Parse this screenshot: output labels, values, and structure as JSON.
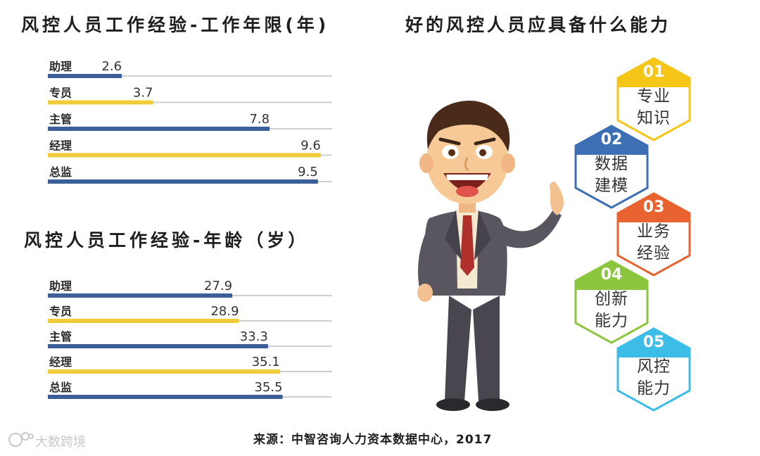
{
  "right_title": "好的风控人员应具备什么能力",
  "abilities": [
    {
      "num": "01",
      "line1": "专业",
      "line2": "知识",
      "color": "#f5c518"
    },
    {
      "num": "02",
      "line1": "数据",
      "line2": "建模",
      "color": "#3d6fb5"
    },
    {
      "num": "03",
      "line1": "业务",
      "line2": "经验",
      "color": "#e8632f"
    },
    {
      "num": "04",
      "line1": "创新",
      "line2": "能力",
      "color": "#8cc63e"
    },
    {
      "num": "05",
      "line1": "风控",
      "line2": "能力",
      "color": "#3bbde8"
    }
  ],
  "source": "来源：中智咨询人力资本数据中心，2017",
  "watermark": "大数跨境",
  "chart_data": [
    {
      "type": "bar",
      "title": "风控人员工作经验-工作年限(年)",
      "categories": [
        "助理",
        "专员",
        "主管",
        "经理",
        "总监"
      ],
      "values": [
        2.6,
        3.7,
        7.8,
        9.6,
        9.5
      ],
      "colors": [
        "#3d5f99",
        "#f0cb3a",
        "#3d5f99",
        "#f0cb3a",
        "#3d5f99"
      ],
      "xlim": [
        0,
        10.0
      ]
    },
    {
      "type": "bar",
      "title": "风控人员工作经验-年龄（岁）",
      "categories": [
        "助理",
        "专员",
        "主管",
        "经理",
        "总监"
      ],
      "values": [
        27.9,
        28.9,
        33.3,
        35.1,
        35.5
      ],
      "colors": [
        "#3d5f99",
        "#f0cb3a",
        "#3d5f99",
        "#f0cb3a",
        "#3d5f99"
      ],
      "xlim": [
        0,
        43.0
      ]
    }
  ]
}
